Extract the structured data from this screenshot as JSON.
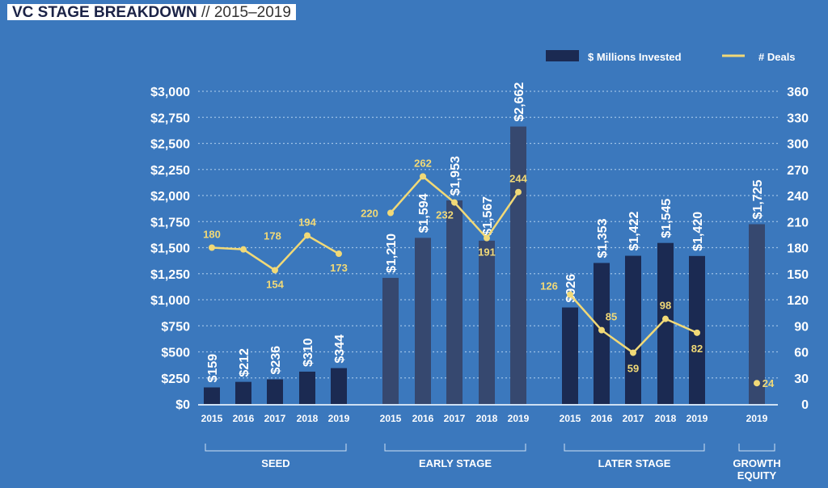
{
  "title": {
    "main": "VC STAGE BREAKDOWN",
    "sub": "// 2015–2019"
  },
  "chart_data": {
    "type": "bar+line",
    "legend": {
      "position": "top-right",
      "bar_label": "$ Millions Invested",
      "line_label": "# Deals"
    },
    "y_left": {
      "range": [
        0,
        3000
      ],
      "ticks": [
        "$0",
        "$250",
        "$500",
        "$750",
        "$1,000",
        "$1,250",
        "$1,500",
        "$1,750",
        "$2,000",
        "$2,250",
        "$2,500",
        "$2,750",
        "$3,000"
      ]
    },
    "y_right": {
      "range": [
        0,
        360
      ],
      "ticks": [
        "0",
        "30",
        "60",
        "90",
        "120",
        "150",
        "180",
        "210",
        "240",
        "270",
        "300",
        "330",
        "360"
      ]
    },
    "grid": true,
    "groups": [
      {
        "name": "SEED",
        "years": [
          "2015",
          "2016",
          "2017",
          "2018",
          "2019"
        ],
        "invested": [
          159,
          212,
          236,
          310,
          344
        ],
        "invested_labels": [
          "$159",
          "$212",
          "$236",
          "$310",
          "$344"
        ],
        "deals": [
          180,
          178,
          154,
          194,
          173
        ]
      },
      {
        "name": "EARLY STAGE",
        "years": [
          "2015",
          "2016",
          "2017",
          "2018",
          "2019"
        ],
        "invested": [
          1210,
          1594,
          1953,
          1567,
          2662
        ],
        "invested_labels": [
          "$1,210",
          "$1,594",
          "$1,953",
          "$1,567",
          "$2,662"
        ],
        "deals": [
          220,
          262,
          232,
          191,
          244
        ]
      },
      {
        "name": "LATER STAGE",
        "years": [
          "2015",
          "2016",
          "2017",
          "2018",
          "2019"
        ],
        "invested": [
          926,
          1353,
          1422,
          1545,
          1420
        ],
        "invested_labels": [
          "$926",
          "$1,353",
          "$1,422",
          "$1,545",
          "$1,420"
        ],
        "deals": [
          126,
          85,
          59,
          98,
          82
        ]
      },
      {
        "name": "GROWTH EQUITY",
        "years": [
          "2019"
        ],
        "invested": [
          1725
        ],
        "invested_labels": [
          "$1,725"
        ],
        "deals": [
          24
        ]
      }
    ],
    "colors": {
      "background": "#3b78bd",
      "bar_dark": "#1b2a52",
      "bar_alt": "#36486f",
      "line": "#f1d977",
      "text": "#ffffff"
    }
  }
}
